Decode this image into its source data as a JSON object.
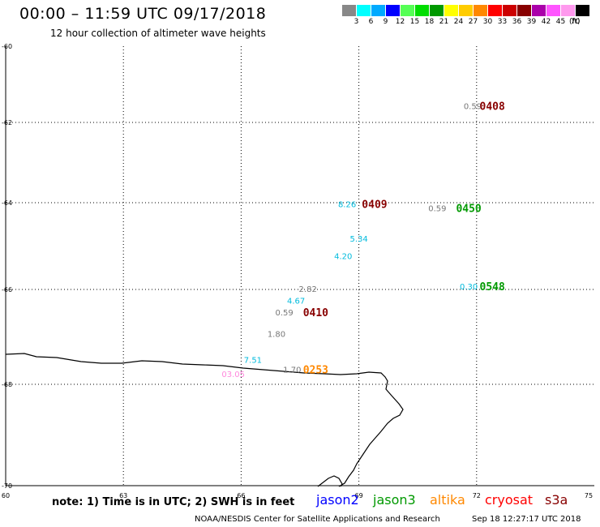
{
  "title": "00:00 – 11:59 UTC 09/17/2018",
  "subtitle": "12 hour collection of altimeter wave heights",
  "legend": {
    "unit": "(ft)",
    "bins": [
      {
        "label": "3",
        "color": "#888888"
      },
      {
        "label": "6",
        "color": "#00ffff"
      },
      {
        "label": "9",
        "color": "#00aaff"
      },
      {
        "label": "12",
        "color": "#0000ff"
      },
      {
        "label": "15",
        "color": "#55ff55"
      },
      {
        "label": "18",
        "color": "#00dd00"
      },
      {
        "label": "21",
        "color": "#009900"
      },
      {
        "label": "24",
        "color": "#ffff00"
      },
      {
        "label": "27",
        "color": "#ffcc00"
      },
      {
        "label": "30",
        "color": "#ff8800"
      },
      {
        "label": "33",
        "color": "#ff0000"
      },
      {
        "label": "36",
        "color": "#cc0000"
      },
      {
        "label": "39",
        "color": "#880000"
      },
      {
        "label": "42",
        "color": "#aa00aa"
      },
      {
        "label": "45",
        "color": "#ff55ff"
      },
      {
        "label": "70",
        "color": "#ff99ee"
      },
      {
        "label": "",
        "color": "#000000"
      }
    ]
  },
  "axes": {
    "x_ticks": [
      "60",
      "63",
      "66",
      "69",
      "72",
      "75"
    ],
    "y_ticks": [
      "-60",
      "-62",
      "-64",
      "-66",
      "-68",
      "-70"
    ]
  },
  "wave_heights": [
    {
      "value": "0.59",
      "lon": 71.9,
      "lat": -61.65,
      "color": "#777777"
    },
    {
      "value": "8.26",
      "lon": 68.7,
      "lat": -64.1,
      "color": "#00bbdd"
    },
    {
      "value": "0.59",
      "lon": 71.0,
      "lat": -64.2,
      "color": "#777777"
    },
    {
      "value": "5.34",
      "lon": 69.0,
      "lat": -64.9,
      "color": "#00bbdd"
    },
    {
      "value": "4.20",
      "lon": 68.6,
      "lat": -65.3,
      "color": "#00bbdd"
    },
    {
      "value": "2.82",
      "lon": 67.7,
      "lat": -66.05,
      "color": "#777777"
    },
    {
      "value": "4.67",
      "lon": 67.4,
      "lat": -66.3,
      "color": "#00bbdd"
    },
    {
      "value": "0.59",
      "lon": 67.1,
      "lat": -66.55,
      "color": "#777777"
    },
    {
      "value": "1.80",
      "lon": 66.9,
      "lat": -67.0,
      "color": "#777777"
    },
    {
      "value": "7.51",
      "lon": 66.3,
      "lat": -67.55,
      "color": "#00bbdd"
    },
    {
      "value": "1.70",
      "lon": 67.3,
      "lat": -67.75,
      "color": "#777777"
    },
    {
      "value": "03.05",
      "lon": 65.8,
      "lat": -67.85,
      "color": "#ff88dd"
    },
    {
      "value": "0.30",
      "lon": 71.8,
      "lat": -66.0,
      "color": "#00bbdd"
    }
  ],
  "time_stamps": [
    {
      "text": "0408",
      "lon": 72.4,
      "lat": -61.65,
      "color": "#880000"
    },
    {
      "text": "0409",
      "lon": 69.4,
      "lat": -64.1,
      "color": "#880000"
    },
    {
      "text": "0450",
      "lon": 71.8,
      "lat": -64.2,
      "color": "#009900"
    },
    {
      "text": "0410",
      "lon": 67.9,
      "lat": -66.55,
      "color": "#880000"
    },
    {
      "text": "0253",
      "lon": 67.9,
      "lat": -67.75,
      "color": "#ff8800"
    },
    {
      "text": "0548",
      "lon": 72.4,
      "lat": -66.0,
      "color": "#009900"
    }
  ],
  "note": "note: 1) Time is in UTC; 2) SWH is in feet",
  "satellites": [
    {
      "name": "jason2",
      "color": "#0000ff"
    },
    {
      "name": "jason3",
      "color": "#009900"
    },
    {
      "name": "altika",
      "color": "#ff8800"
    },
    {
      "name": "cryosat",
      "color": "#ff0000"
    },
    {
      "name": "s3a",
      "color": "#880000"
    }
  ],
  "credit": "NOAA/NESDIS Center for Satellite Applications and Research",
  "timestamp": "Sep 18 12:27:17 UTC 2018"
}
